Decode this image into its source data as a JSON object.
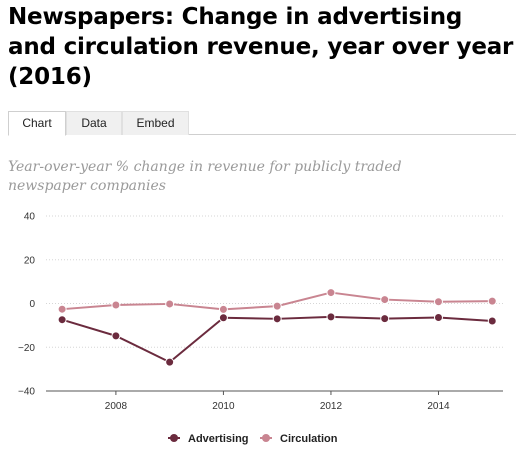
{
  "title": "Newspapers: Change in advertising and circulation revenue, year over year (2016)",
  "tabs": [
    {
      "label": "Chart",
      "active": true
    },
    {
      "label": "Data",
      "active": false
    },
    {
      "label": "Embed",
      "active": false
    }
  ],
  "colors": {
    "advertising": "#6b2b3e",
    "circulation": "#c98591",
    "grid": "#d6d6d6",
    "axis": "#555555"
  },
  "chart_data": {
    "type": "line",
    "title": "Year-over-year % change in revenue for publicly traded newspaper companies",
    "xlabel": "",
    "ylabel": "",
    "x": [
      2007,
      2008,
      2009,
      2010,
      2011,
      2012,
      2013,
      2014,
      2015
    ],
    "x_ticks": [
      "2008",
      "2010",
      "2012",
      "2014"
    ],
    "y_ticks": [
      "40",
      "20",
      "0",
      "−20",
      "−40"
    ],
    "xlim": [
      2006.7,
      2015.2
    ],
    "ylim": [
      -40,
      40
    ],
    "grid": true,
    "legend_position": "bottom-center",
    "series": [
      {
        "name": "Advertising",
        "values": [
          -7.4,
          -14.8,
          -26.8,
          -6.5,
          -7.0,
          -6.1,
          -6.9,
          -6.4,
          -8.0
        ]
      },
      {
        "name": "Circulation",
        "values": [
          -2.6,
          -0.7,
          -0.2,
          -2.7,
          -1.2,
          5.0,
          1.8,
          0.8,
          1.1
        ]
      }
    ]
  }
}
